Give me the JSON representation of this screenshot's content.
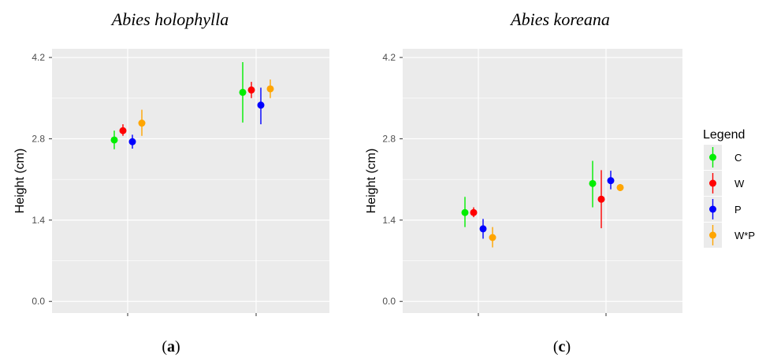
{
  "chart_data": [
    {
      "type": "errorbar",
      "title": "Abies holophylla",
      "panel_label": {
        "open": "(",
        "letter": "a",
        "close": ")"
      },
      "ylabel": "Height (cm)",
      "xlabel": "",
      "ylim": [
        -0.2,
        4.35
      ],
      "yticks": [
        "0.0",
        "1.4",
        "2.8",
        "4.2"
      ],
      "grid": true,
      "groups": [
        1,
        2
      ],
      "series": [
        {
          "name": "C",
          "color": "#00EE00",
          "points": [
            {
              "group": 1,
              "y": 2.78,
              "lo": 2.62,
              "hi": 2.94
            },
            {
              "group": 2,
              "y": 3.6,
              "lo": 3.08,
              "hi": 4.12
            }
          ]
        },
        {
          "name": "W",
          "color": "#FF0000",
          "points": [
            {
              "group": 1,
              "y": 2.94,
              "lo": 2.85,
              "hi": 3.05
            },
            {
              "group": 2,
              "y": 3.64,
              "lo": 3.5,
              "hi": 3.78
            }
          ]
        },
        {
          "name": "P",
          "color": "#0000FF",
          "points": [
            {
              "group": 1,
              "y": 2.75,
              "lo": 2.63,
              "hi": 2.87
            },
            {
              "group": 2,
              "y": 3.38,
              "lo": 3.05,
              "hi": 3.68
            }
          ]
        },
        {
          "name": "W*P",
          "color": "#FFA500",
          "points": [
            {
              "group": 1,
              "y": 3.07,
              "lo": 2.85,
              "hi": 3.3
            },
            {
              "group": 2,
              "y": 3.66,
              "lo": 3.5,
              "hi": 3.82
            }
          ]
        }
      ]
    },
    {
      "type": "errorbar",
      "title": "Abies koreana",
      "panel_label": {
        "open": "(",
        "letter": "c",
        "close": ")"
      },
      "ylabel": "Height (cm)",
      "xlabel": "",
      "ylim": [
        -0.2,
        4.35
      ],
      "yticks": [
        "0.0",
        "1.4",
        "2.8",
        "4.2"
      ],
      "grid": true,
      "groups": [
        1,
        2
      ],
      "series": [
        {
          "name": "C",
          "color": "#00EE00",
          "points": [
            {
              "group": 1,
              "y": 1.53,
              "lo": 1.28,
              "hi": 1.8
            },
            {
              "group": 2,
              "y": 2.03,
              "lo": 1.62,
              "hi": 2.42
            }
          ]
        },
        {
          "name": "W",
          "color": "#FF0000",
          "points": [
            {
              "group": 1,
              "y": 1.53,
              "lo": 1.45,
              "hi": 1.62
            },
            {
              "group": 2,
              "y": 1.76,
              "lo": 1.26,
              "hi": 2.26
            }
          ]
        },
        {
          "name": "P",
          "color": "#0000FF",
          "points": [
            {
              "group": 1,
              "y": 1.25,
              "lo": 1.08,
              "hi": 1.42
            },
            {
              "group": 2,
              "y": 2.08,
              "lo": 1.93,
              "hi": 2.25
            }
          ]
        },
        {
          "name": "W*P",
          "color": "#FFA500",
          "points": [
            {
              "group": 1,
              "y": 1.1,
              "lo": 0.93,
              "hi": 1.28
            },
            {
              "group": 2,
              "y": 1.96,
              "lo": 1.9,
              "hi": 2.02
            }
          ]
        }
      ]
    }
  ],
  "legend": {
    "title": "Legend",
    "placement": "right",
    "items": [
      {
        "label": "C",
        "color": "#00EE00"
      },
      {
        "label": "W",
        "color": "#FF0000"
      },
      {
        "label": "P",
        "color": "#0000FF"
      },
      {
        "label": "W*P",
        "color": "#FFA500"
      }
    ]
  },
  "colors": {
    "panel_bg": "#EBEBEB",
    "grid": "#FFFFFF",
    "axis_text": "#4D4D4D"
  }
}
